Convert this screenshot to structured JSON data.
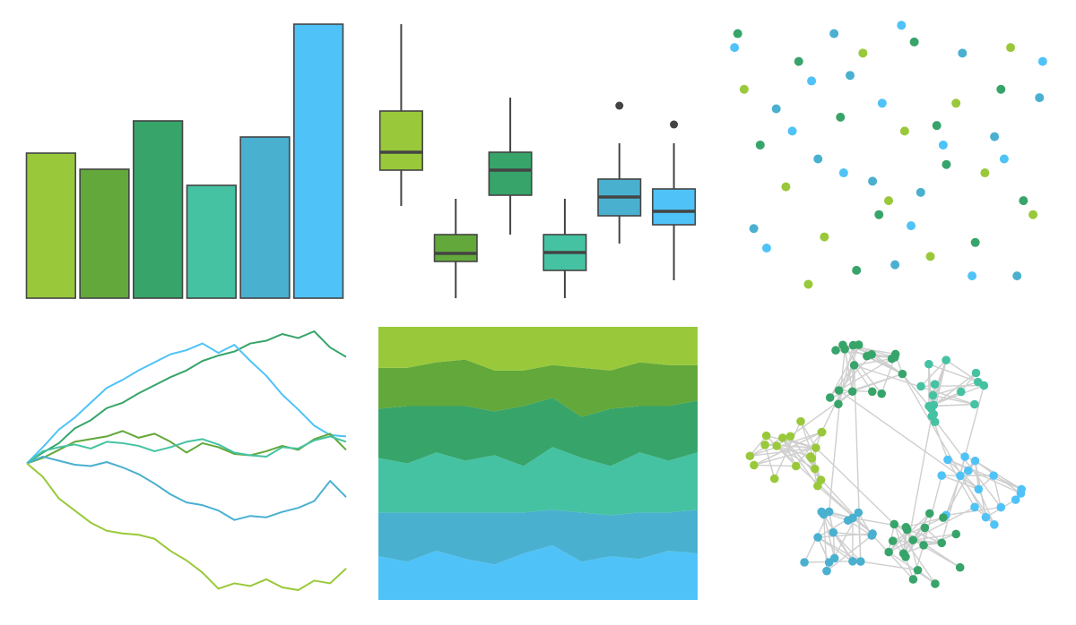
{
  "chart_data": [
    {
      "type": "bar",
      "categories": [
        null,
        null,
        null,
        null,
        null,
        null
      ],
      "values": [
        162,
        144,
        198,
        126,
        180,
        306
      ],
      "colors": [
        "#99c93a",
        "#62a83a",
        "#37a46a",
        "#45c2a2",
        "#4ab0d0",
        "#4fc3f7"
      ],
      "ylim": [
        0,
        306
      ]
    },
    {
      "type": "box",
      "boxes": [
        {
          "color": "#99c93a",
          "low": 103,
          "q1": 143,
          "median": 163,
          "q3": 209,
          "high": 306,
          "outliers": []
        },
        {
          "color": "#62a83a",
          "low": 0,
          "q1": 41,
          "median": 50,
          "q3": 71,
          "high": 111,
          "outliers": []
        },
        {
          "color": "#37a46a",
          "low": 71,
          "q1": 115,
          "median": 143,
          "q3": 163,
          "high": 224,
          "outliers": []
        },
        {
          "color": "#45c2a2",
          "low": 0,
          "q1": 31,
          "median": 51,
          "q3": 71,
          "high": 111,
          "outliers": []
        },
        {
          "color": "#4ab0d0",
          "low": 61,
          "q1": 92,
          "median": 113,
          "q3": 133,
          "high": 173,
          "outliers": [
            215
          ]
        },
        {
          "color": "#4fc3f7",
          "low": 20,
          "q1": 82,
          "median": 97,
          "q3": 122,
          "high": 173,
          "outliers": [
            194
          ]
        }
      ],
      "ylim": [
        0,
        306
      ]
    },
    {
      "type": "scatter",
      "series": [
        {
          "color": "#99c93a",
          "x": [
            5,
            18,
            30,
            42,
            55,
            63,
            71,
            80,
            88,
            95,
            25,
            50
          ],
          "y": [
            75,
            40,
            22,
            88,
            60,
            15,
            70,
            45,
            90,
            30,
            5,
            35
          ]
        },
        {
          "color": "#37a46a",
          "x": [
            10,
            22,
            35,
            47,
            58,
            68,
            77,
            85,
            92,
            3,
            40,
            65
          ],
          "y": [
            55,
            85,
            65,
            30,
            92,
            48,
            20,
            75,
            35,
            95,
            10,
            62
          ]
        },
        {
          "color": "#4ab0d0",
          "x": [
            8,
            15,
            28,
            38,
            52,
            60,
            73,
            83,
            90,
            97,
            45,
            33
          ],
          "y": [
            25,
            68,
            50,
            80,
            12,
            38,
            88,
            58,
            8,
            72,
            42,
            95
          ]
        },
        {
          "color": "#4fc3f7",
          "x": [
            2,
            12,
            26,
            36,
            48,
            57,
            67,
            76,
            86,
            98,
            20,
            54
          ],
          "y": [
            90,
            18,
            78,
            45,
            70,
            26,
            55,
            8,
            50,
            85,
            60,
            98
          ]
        }
      ],
      "xlim": [
        0,
        100
      ],
      "ylim": [
        0,
        100
      ]
    },
    {
      "type": "line",
      "x": [
        0,
        1,
        2,
        3,
        4,
        5,
        6,
        7,
        8,
        9,
        10,
        11,
        12,
        13,
        14,
        15,
        16,
        17,
        18,
        19,
        20
      ],
      "series": [
        {
          "color": "#37a46a",
          "values": [
            0,
            0.8,
            1.5,
            2.6,
            3.2,
            4.1,
            4.5,
            5.2,
            5.8,
            6.4,
            6.9,
            7.6,
            8.0,
            8.3,
            8.9,
            9.1,
            9.6,
            9.3,
            9.8,
            8.6,
            7.9
          ]
        },
        {
          "color": "#4fc3f7",
          "values": [
            0,
            1.2,
            2.5,
            3.4,
            4.5,
            5.6,
            6.2,
            6.9,
            7.5,
            8.1,
            8.4,
            8.9,
            8.2,
            8.8,
            7.6,
            6.5,
            5.1,
            4.0,
            2.8,
            2.1,
            2.0
          ]
        },
        {
          "color": "#62a83a",
          "values": [
            0,
            0.4,
            1.0,
            1.6,
            1.8,
            2.0,
            2.4,
            1.9,
            2.2,
            1.6,
            0.8,
            1.5,
            1.2,
            0.7,
            0.6,
            0.9,
            1.3,
            1.0,
            1.8,
            2.2,
            1.0
          ]
        },
        {
          "color": "#45c2a2",
          "values": [
            0,
            0.9,
            1.2,
            1.4,
            1.1,
            1.6,
            1.5,
            1.3,
            0.9,
            1.2,
            1.6,
            1.8,
            1.4,
            0.8,
            0.6,
            0.5,
            1.2,
            1.1,
            1.7,
            2.0,
            1.6
          ]
        },
        {
          "color": "#4ab0d0",
          "values": [
            0,
            0.5,
            0.2,
            -0.1,
            -0.2,
            0.1,
            -0.3,
            -0.8,
            -1.5,
            -2.3,
            -2.9,
            -3.1,
            -3.5,
            -4.2,
            -3.9,
            -4.0,
            -3.6,
            -3.3,
            -2.8,
            -1.3,
            -2.5
          ]
        },
        {
          "color": "#99c93a",
          "values": [
            0,
            -1.0,
            -2.6,
            -3.5,
            -4.4,
            -5.0,
            -5.2,
            -5.3,
            -5.6,
            -6.5,
            -7.2,
            -8.1,
            -9.3,
            -8.9,
            -9.1,
            -8.6,
            -9.2,
            -9.4,
            -8.7,
            -8.9,
            -7.8
          ]
        }
      ],
      "xlim": [
        0,
        20
      ],
      "ylim": [
        -10,
        10
      ]
    },
    {
      "type": "stacked-area",
      "x": [
        0,
        1,
        2,
        3,
        4,
        5,
        6,
        7,
        8,
        9,
        10,
        11
      ],
      "series": [
        {
          "color": "#4fc3f7",
          "values": [
            16,
            14,
            18,
            15,
            13,
            17,
            20,
            14,
            16,
            15,
            18,
            17
          ]
        },
        {
          "color": "#4ab0d0",
          "values": [
            16,
            18,
            14,
            17,
            19,
            15,
            13,
            18,
            15,
            17,
            14,
            16
          ]
        },
        {
          "color": "#45c2a2",
          "values": [
            20,
            18,
            22,
            19,
            21,
            17,
            23,
            20,
            18,
            22,
            19,
            21
          ]
        },
        {
          "color": "#37a46a",
          "values": [
            18,
            21,
            17,
            20,
            16,
            22,
            18,
            15,
            21,
            17,
            20,
            19
          ]
        },
        {
          "color": "#62a83a",
          "values": [
            15,
            14,
            16,
            17,
            15,
            13,
            12,
            18,
            14,
            16,
            15,
            13
          ]
        },
        {
          "color": "#99c93a",
          "values": [
            15,
            15,
            13,
            12,
            16,
            16,
            14,
            15,
            16,
            13,
            14,
            14
          ]
        }
      ],
      "xlim": [
        0,
        11
      ],
      "ylim": [
        0,
        100
      ]
    },
    {
      "type": "network",
      "groups": [
        {
          "color": "#37a46a",
          "nodes": 18
        },
        {
          "color": "#45c2a2",
          "nodes": 16
        },
        {
          "color": "#99c93a",
          "nodes": 18
        },
        {
          "color": "#4fc3f7",
          "nodes": 16
        },
        {
          "color": "#4ab0d0",
          "nodes": 16
        },
        {
          "color": "#37a46a",
          "nodes": 18
        }
      ]
    }
  ]
}
